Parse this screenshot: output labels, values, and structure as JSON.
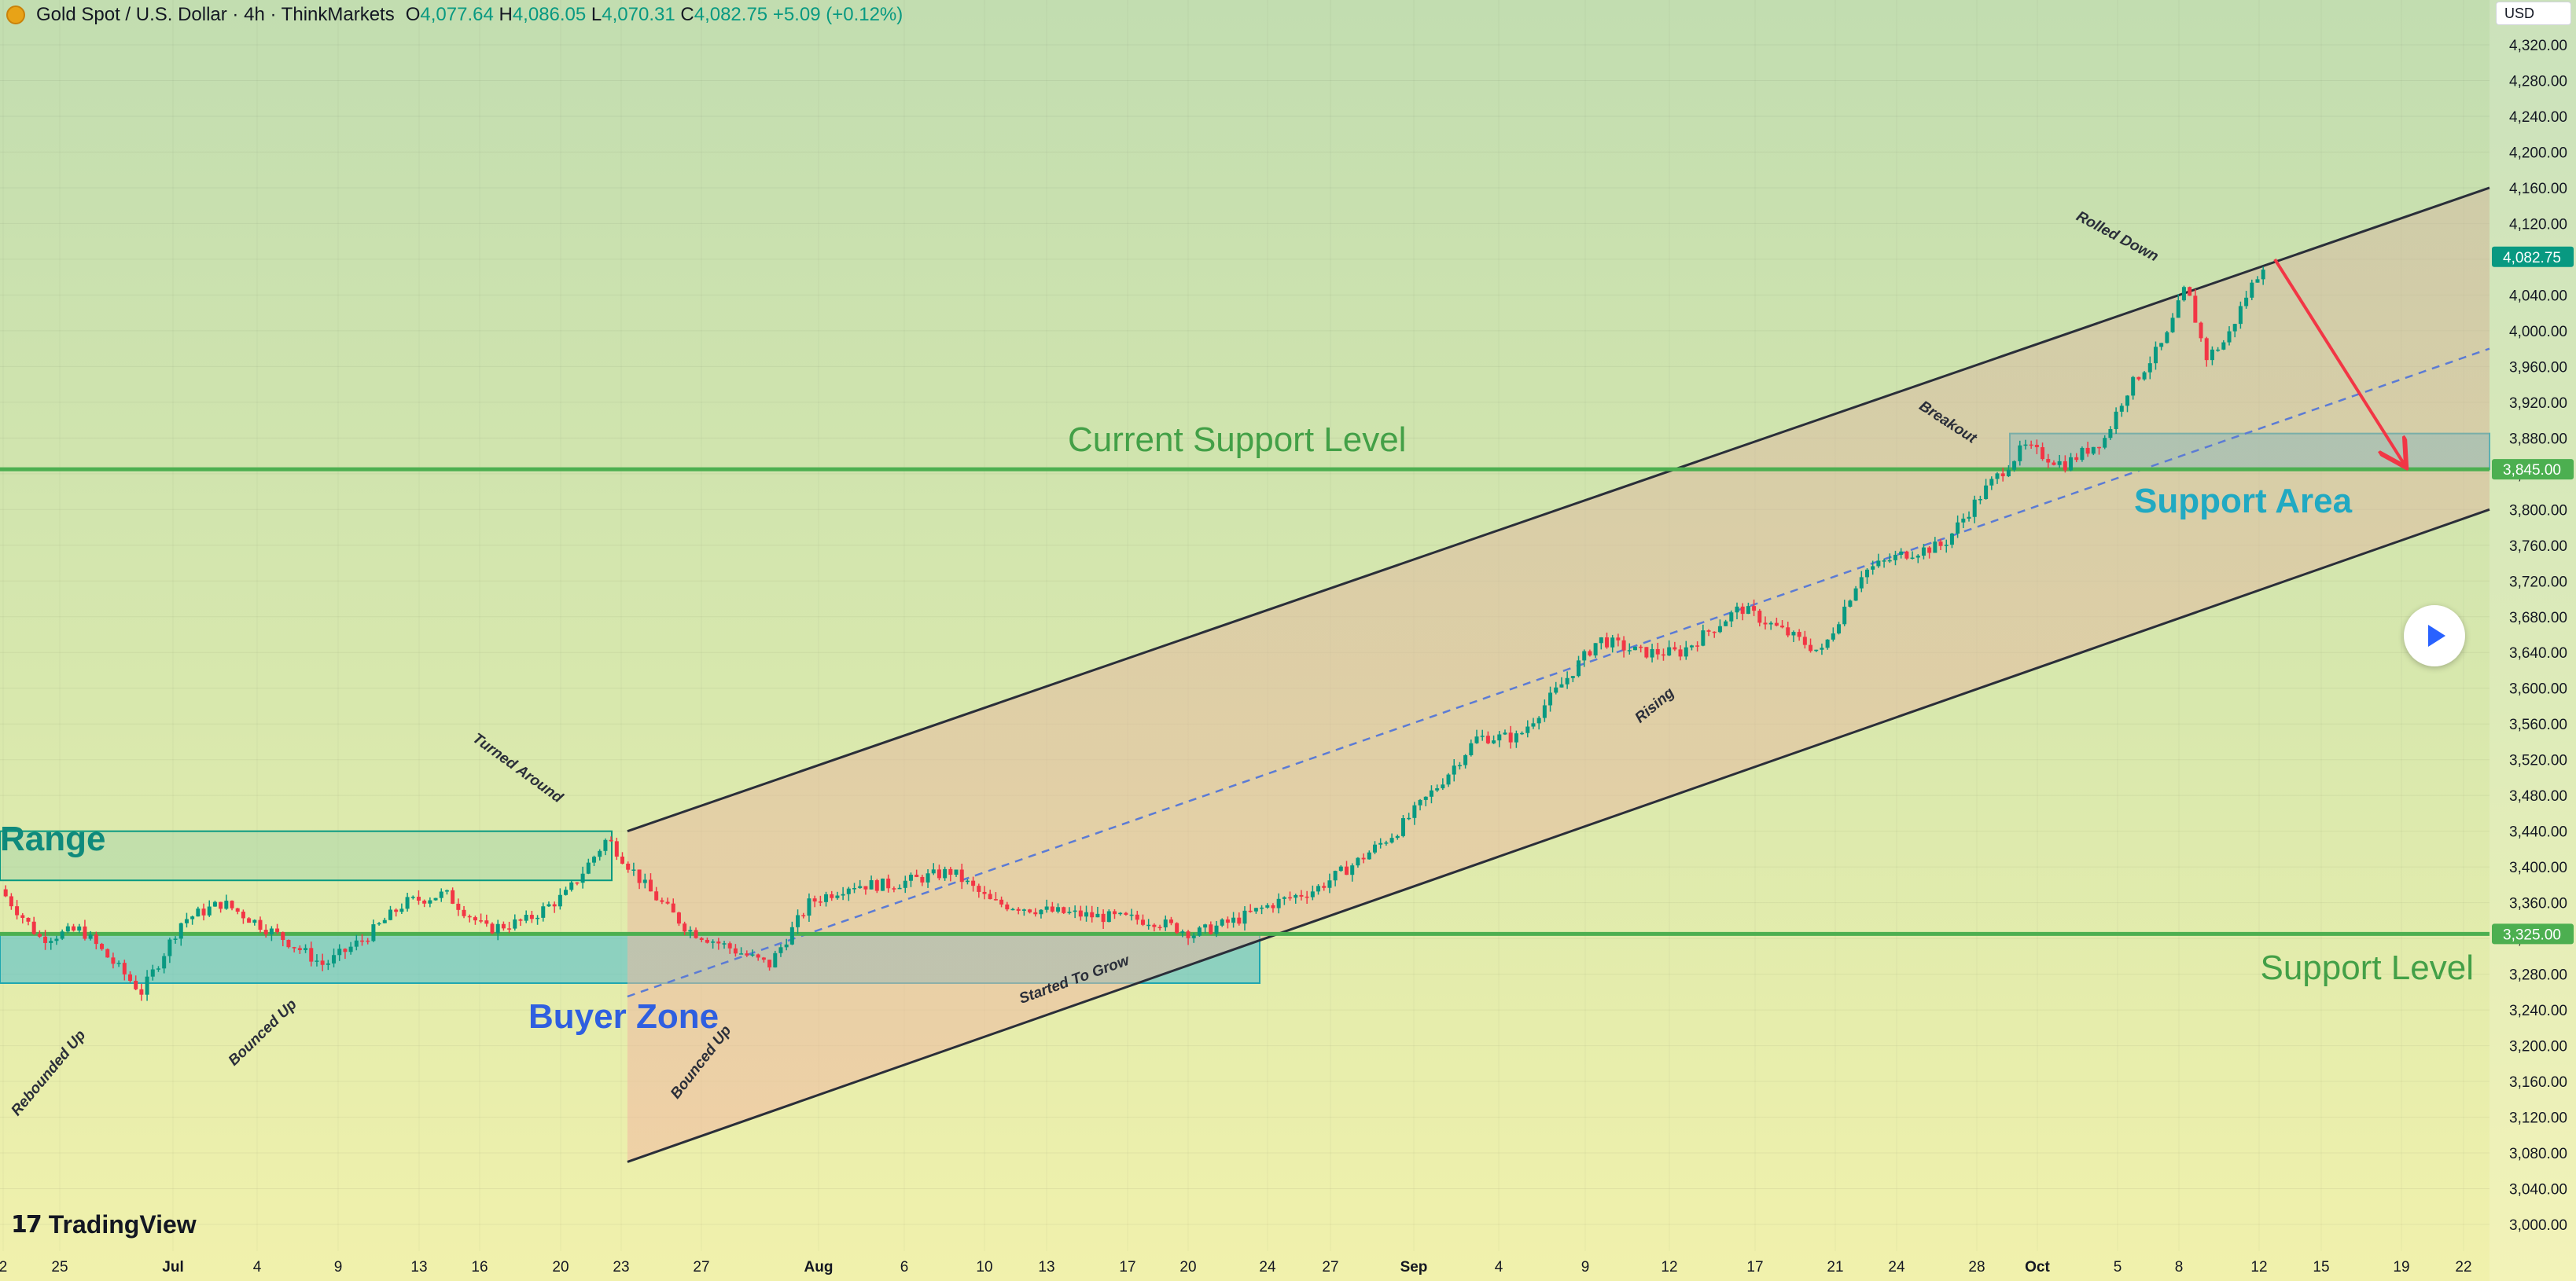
{
  "header": {
    "title": "Gold Spot / U.S. Dollar · 4h · ThinkMarkets",
    "open_label": "O",
    "open": "4,077.64",
    "high_label": "H",
    "high": "4,086.05",
    "low_label": "L",
    "low": "4,070.31",
    "close_label": "C",
    "close": "4,082.75",
    "change": "+5.09 (+0.12%)"
  },
  "price_scale_unit": "USD",
  "branding": "TradingView",
  "colors": {
    "bull": "#089981",
    "bear": "#f23645",
    "support": "#4caf50",
    "zone_fill": "#5fc3c9",
    "channel_line": "#2a2e39",
    "arrow": "#f23645",
    "midline": "#5b7bd5"
  },
  "chart_data": {
    "type": "candlestick",
    "symbol": "Gold Spot / U.S. Dollar",
    "interval": "4h",
    "ylim": [
      2980,
      4350
    ],
    "yticks": [
      "4,320.00",
      "4,280.00",
      "4,240.00",
      "4,200.00",
      "4,160.00",
      "4,120.00",
      "4,080.00",
      "4,040.00",
      "4,000.00",
      "3,960.00",
      "3,920.00",
      "3,880.00",
      "3,840.00",
      "3,800.00",
      "3,760.00",
      "3,720.00",
      "3,680.00",
      "3,640.00",
      "3,600.00",
      "3,560.00",
      "3,520.00",
      "3,480.00",
      "3,440.00",
      "3,400.00",
      "3,360.00",
      "3,320.00",
      "3,280.00",
      "3,240.00",
      "3,200.00",
      "3,160.00",
      "3,120.00",
      "3,080.00",
      "3,040.00",
      "3,000.00"
    ],
    "xticks": [
      "2",
      "25",
      "Jul",
      "4",
      "9",
      "13",
      "16",
      "20",
      "23",
      "27",
      "Aug",
      "6",
      "10",
      "13",
      "17",
      "20",
      "24",
      "27",
      "Sep",
      "4",
      "9",
      "12",
      "17",
      "21",
      "24",
      "28",
      "Oct",
      "5",
      "8",
      "12",
      "15",
      "19",
      "22"
    ],
    "price_path": [
      {
        "t": "Jun 22",
        "price": 3375
      },
      {
        "t": "Jun 24",
        "price": 3320
      },
      {
        "t": "Jun 26",
        "price": 3330
      },
      {
        "t": "Jun 29",
        "price": 3260
      },
      {
        "t": "Jul 1",
        "price": 3340
      },
      {
        "t": "Jul 3",
        "price": 3360
      },
      {
        "t": "Jul 6",
        "price": 3320
      },
      {
        "t": "Jul 8",
        "price": 3290
      },
      {
        "t": "Jul 10",
        "price": 3320
      },
      {
        "t": "Jul 12",
        "price": 3360
      },
      {
        "t": "Jul 14",
        "price": 3370
      },
      {
        "t": "Jul 16",
        "price": 3330
      },
      {
        "t": "Jul 18",
        "price": 3340
      },
      {
        "t": "Jul 20",
        "price": 3370
      },
      {
        "t": "Jul 22",
        "price": 3432
      },
      {
        "t": "Jul 24",
        "price": 3375
      },
      {
        "t": "Jul 26",
        "price": 3330
      },
      {
        "t": "Jul 28",
        "price": 3310
      },
      {
        "t": "Jul 30",
        "price": 3290
      },
      {
        "t": "Aug 1",
        "price": 3360
      },
      {
        "t": "Aug 3",
        "price": 3380
      },
      {
        "t": "Aug 5",
        "price": 3380
      },
      {
        "t": "Aug 8",
        "price": 3395
      },
      {
        "t": "Aug 10",
        "price": 3360
      },
      {
        "t": "Aug 13",
        "price": 3350
      },
      {
        "t": "Aug 15",
        "price": 3345
      },
      {
        "t": "Aug 18",
        "price": 3340
      },
      {
        "t": "Aug 20",
        "price": 3325
      },
      {
        "t": "Aug 22",
        "price": 3340
      },
      {
        "t": "Aug 24",
        "price": 3360
      },
      {
        "t": "Aug 26",
        "price": 3375
      },
      {
        "t": "Aug 28",
        "price": 3405
      },
      {
        "t": "Aug 30",
        "price": 3440
      },
      {
        "t": "Sep 1",
        "price": 3490
      },
      {
        "t": "Sep 3",
        "price": 3545
      },
      {
        "t": "Sep 5",
        "price": 3545
      },
      {
        "t": "Sep 7",
        "price": 3600
      },
      {
        "t": "Sep 9",
        "price": 3655
      },
      {
        "t": "Sep 11",
        "price": 3640
      },
      {
        "t": "Sep 13",
        "price": 3640
      },
      {
        "t": "Sep 16",
        "price": 3690
      },
      {
        "t": "Sep 18",
        "price": 3665
      },
      {
        "t": "Sep 20",
        "price": 3640
      },
      {
        "t": "Sep 22",
        "price": 3730
      },
      {
        "t": "Sep 24",
        "price": 3750
      },
      {
        "t": "Sep 26",
        "price": 3760
      },
      {
        "t": "Sep 28",
        "price": 3820
      },
      {
        "t": "Sep 30",
        "price": 3870
      },
      {
        "t": "Oct 2",
        "price": 3850
      },
      {
        "t": "Oct 4",
        "price": 3880
      },
      {
        "t": "Oct 5",
        "price": 3930
      },
      {
        "t": "Oct 7",
        "price": 3990
      },
      {
        "t": "Oct 8",
        "price": 4050
      },
      {
        "t": "Oct 9",
        "price": 3970
      },
      {
        "t": "Oct 10",
        "price": 3990
      },
      {
        "t": "Oct 11",
        "price": 4040
      },
      {
        "t": "Oct 12",
        "price": 4082.75
      }
    ],
    "horizontal_levels": [
      {
        "name": "Current Support Level",
        "price": 3845.0,
        "label": "3,845.00"
      },
      {
        "name": "Support Level",
        "price": 3325.0,
        "label": "3,325.00"
      }
    ],
    "last_price": {
      "price": 4082.75,
      "label": "4,082.75"
    },
    "zones": [
      {
        "name": "Range",
        "from": "Jun 22",
        "to": "Jul 22",
        "low": 3385,
        "high": 3440
      },
      {
        "name": "Buyer Zone",
        "from": "Jun 22",
        "to": "Aug 24",
        "low": 3270,
        "high": 3325
      },
      {
        "name": "Support Area",
        "from": "Sep 29",
        "to": "Oct 23",
        "low": 3845,
        "high": 3885
      }
    ],
    "channel": {
      "start": "Jul 23",
      "end": "Oct 23",
      "upper": [
        3440,
        4160
      ],
      "lower": [
        3070,
        3800
      ]
    },
    "projection": {
      "from": "Oct 12",
      "to": "Oct 19",
      "from_price": 4080,
      "to_price": 3850
    },
    "annotations": [
      {
        "text": "Range",
        "t": "Jun 22",
        "price": 3440
      },
      {
        "text": "Buyer Zone",
        "t": "Jul 19",
        "price": 3240
      },
      {
        "text": "Current Support Level",
        "t": "Aug 24",
        "price": 3880
      },
      {
        "text": "Support Level",
        "t": "Oct 19",
        "price": 3290
      },
      {
        "text": "Support Area",
        "t": "Oct 8",
        "price": 3820
      },
      {
        "text": "Turned Around",
        "t": "Jul 19",
        "price": 3480
      },
      {
        "text": "Rebounded Up",
        "t": "Jun 26",
        "price": 3220
      },
      {
        "text": "Bounced Up",
        "t": "Jul 5",
        "price": 3240
      },
      {
        "text": "Bounced Up",
        "t": "Jul 29",
        "price": 3220
      },
      {
        "text": "Started To Grow",
        "t": "Aug 20",
        "price": 3290
      },
      {
        "text": "Rising",
        "t": "Sep 12",
        "price": 3600
      },
      {
        "text": "Breakout",
        "t": "Sep 26",
        "price": 3880
      },
      {
        "text": "Rolled Down",
        "t": "Oct 7",
        "price": 4090
      }
    ]
  }
}
